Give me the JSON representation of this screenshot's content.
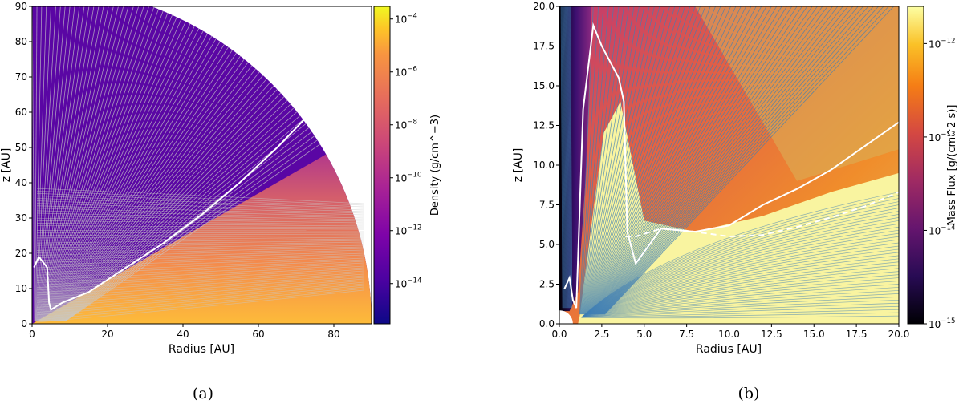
{
  "chart_data": [
    {
      "panel_label": "(a)",
      "type": "heatmap",
      "xlabel": "Radius [AU]",
      "ylabel": "z [AU]",
      "xlim": [
        0,
        90
      ],
      "ylim": [
        0,
        90
      ],
      "x_ticks": [
        "0",
        "20",
        "40",
        "60",
        "80"
      ],
      "y_ticks": [
        "0",
        "10",
        "20",
        "30",
        "40",
        "50",
        "60",
        "70",
        "80",
        "90"
      ],
      "colorbar": {
        "label": "Density (g/cm^−3)",
        "scale": "log",
        "range": [
          3e-16,
          0.0003
        ],
        "ticks": [
          "10^−4",
          "10^−6",
          "10^−8",
          "10^−10",
          "10^−12",
          "10^−14"
        ],
        "colormap": "plasma"
      },
      "streamline_color": "#c8c8c8",
      "white_line": {
        "x": [
          0.5,
          1.8,
          4,
          4.5,
          5,
          8,
          15,
          25,
          35,
          45,
          55,
          65,
          74
        ],
        "y": [
          16,
          19,
          16,
          6,
          4,
          6,
          9,
          16,
          23,
          31,
          40,
          50,
          60
        ]
      },
      "domain_outer_radius_au": 90,
      "disk_surface_angle_deg": 30
    },
    {
      "panel_label": "(b)",
      "type": "heatmap",
      "xlabel": "Radius [AU]",
      "ylabel": "z [AU]",
      "xlim": [
        0,
        20
      ],
      "ylim": [
        0,
        20
      ],
      "x_ticks": [
        "0.0",
        "2.5",
        "5.0",
        "7.5",
        "10.0",
        "12.5",
        "15.0",
        "17.5",
        "20.0"
      ],
      "y_ticks": [
        "0.0",
        "2.5",
        "5.0",
        "7.5",
        "10.0",
        "12.5",
        "15.0",
        "17.5",
        "20.0"
      ],
      "colorbar": {
        "label": "Mass Flux [g/(cm^2 s)]",
        "scale": "log",
        "range": [
          1e-15,
          2.5e-12
        ],
        "ticks": [
          "10^−12",
          "10^−13",
          "10^−14",
          "10^−15"
        ],
        "colormap": "inferno"
      },
      "streamline_color": "#3f7fb5",
      "white_line_solid": {
        "x": [
          0.3,
          0.6,
          0.8,
          1.0,
          1.4,
          2.0,
          2.5,
          3.5,
          3.8,
          3.9,
          4.0,
          4.5,
          6,
          8,
          10,
          12,
          14,
          16,
          18,
          20
        ],
        "y": [
          2.2,
          2.9,
          1.5,
          1.0,
          13.5,
          18.8,
          17.5,
          15.5,
          14.0,
          10.0,
          5.8,
          3.8,
          6.0,
          5.8,
          6.2,
          7.5,
          8.5,
          9.7,
          11.2,
          12.7
        ]
      },
      "white_line_dashed": {
        "x": [
          3.9,
          4.5,
          6,
          8,
          10,
          12,
          14,
          16,
          18,
          20
        ],
        "y": [
          5.5,
          5.5,
          6.0,
          5.8,
          5.5,
          5.6,
          6.1,
          6.7,
          7.4,
          8.3
        ]
      }
    }
  ]
}
